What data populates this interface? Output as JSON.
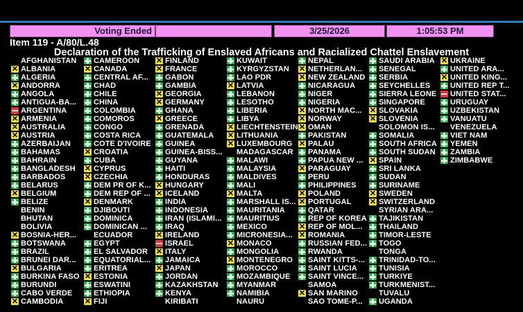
{
  "header": {
    "status": "Voting Ended",
    "blank": "",
    "date": "3/25/2026",
    "time": "1:05:53 PM"
  },
  "item": "Item 119 - A/80/L.48",
  "subject": "Declaration of the Trafficking of Enslaved Africans and Racialized Chattel Enslavement",
  "vote_colors": {
    "Y": "#2fb24c",
    "A": "#eee03a",
    "N": "#e0363a"
  },
  "vote_icons": {
    "Y": "plus-icon (yes)",
    "A": "x-icon (abstain)",
    "N": "minus-icon (no)",
    "": "no vote"
  },
  "columns": [
    [
      {
        "name": "AFGHANISTAN",
        "vote": ""
      },
      {
        "name": "ALBANIA",
        "vote": "A"
      },
      {
        "name": "ALGERIA",
        "vote": "Y"
      },
      {
        "name": "ANDORRA",
        "vote": "A"
      },
      {
        "name": "ANGOLA",
        "vote": "Y"
      },
      {
        "name": "ANTIGUA-BA...",
        "vote": "Y"
      },
      {
        "name": "ARGENTINA",
        "vote": "N"
      },
      {
        "name": "ARMENIA",
        "vote": "A"
      },
      {
        "name": "AUSTRALIA",
        "vote": "A"
      },
      {
        "name": "AUSTRIA",
        "vote": "A"
      },
      {
        "name": "AZERBAIJAN",
        "vote": "Y"
      },
      {
        "name": "BAHAMAS",
        "vote": "Y"
      },
      {
        "name": "BAHRAIN",
        "vote": "Y"
      },
      {
        "name": "BANGLADESH",
        "vote": "Y"
      },
      {
        "name": "BARBADOS",
        "vote": "Y"
      },
      {
        "name": "BELARUS",
        "vote": "Y"
      },
      {
        "name": "BELGIUM",
        "vote": "A"
      },
      {
        "name": "BELIZE",
        "vote": "Y"
      },
      {
        "name": "BENIN",
        "vote": ""
      },
      {
        "name": "BHUTAN",
        "vote": ""
      },
      {
        "name": "BOLIVIA",
        "vote": ""
      },
      {
        "name": "BOSNIA-HER...",
        "vote": "A"
      },
      {
        "name": "BOTSWANA",
        "vote": "Y"
      },
      {
        "name": "BRAZIL",
        "vote": "Y"
      },
      {
        "name": "BRUNEI DAR...",
        "vote": "Y"
      },
      {
        "name": "BULGARIA",
        "vote": "A"
      },
      {
        "name": "BURKINA FASO",
        "vote": "Y"
      },
      {
        "name": "BURUNDI",
        "vote": "Y"
      },
      {
        "name": "CABO VERDE",
        "vote": "Y"
      },
      {
        "name": "CAMBODIA",
        "vote": "A"
      }
    ],
    [
      {
        "name": "CAMEROON",
        "vote": "Y"
      },
      {
        "name": "CANADA",
        "vote": "A"
      },
      {
        "name": "CENTRAL AF...",
        "vote": "Y"
      },
      {
        "name": "CHAD",
        "vote": "Y"
      },
      {
        "name": "CHILE",
        "vote": "Y"
      },
      {
        "name": "CHINA",
        "vote": "Y"
      },
      {
        "name": "COLOMBIA",
        "vote": "Y"
      },
      {
        "name": "COMOROS",
        "vote": "Y"
      },
      {
        "name": "CONGO",
        "vote": "Y"
      },
      {
        "name": "COSTA RICA",
        "vote": "Y"
      },
      {
        "name": "COTE D'IVOIRE",
        "vote": "Y"
      },
      {
        "name": "CROATIA",
        "vote": "A"
      },
      {
        "name": "CUBA",
        "vote": "Y"
      },
      {
        "name": "CYPRUS",
        "vote": "A"
      },
      {
        "name": "CZECHIA",
        "vote": "A"
      },
      {
        "name": "DEM PR OF K...",
        "vote": "Y"
      },
      {
        "name": "DEM REP OF ...",
        "vote": "Y"
      },
      {
        "name": "DENMARK",
        "vote": "A"
      },
      {
        "name": "DJIBOUTI",
        "vote": "Y"
      },
      {
        "name": "DOMINICA",
        "vote": "Y"
      },
      {
        "name": "DOMINICAN ...",
        "vote": "Y"
      },
      {
        "name": "ECUADOR",
        "vote": ""
      },
      {
        "name": "EGYPT",
        "vote": "Y"
      },
      {
        "name": "EL SALVADOR",
        "vote": "Y"
      },
      {
        "name": "EQUATORIAL...",
        "vote": "Y"
      },
      {
        "name": "ERITREA",
        "vote": "Y"
      },
      {
        "name": "ESTONIA",
        "vote": "A"
      },
      {
        "name": "ESWATINI",
        "vote": "Y"
      },
      {
        "name": "ETHIOPIA",
        "vote": "Y"
      },
      {
        "name": "FIJI",
        "vote": "A"
      }
    ],
    [
      {
        "name": "FINLAND",
        "vote": "A"
      },
      {
        "name": "FRANCE",
        "vote": "A"
      },
      {
        "name": "GABON",
        "vote": "Y"
      },
      {
        "name": "GAMBIA",
        "vote": "Y"
      },
      {
        "name": "GEORGIA",
        "vote": "A"
      },
      {
        "name": "GERMANY",
        "vote": "A"
      },
      {
        "name": "GHANA",
        "vote": "Y"
      },
      {
        "name": "GREECE",
        "vote": "A"
      },
      {
        "name": "GRENADA",
        "vote": "Y"
      },
      {
        "name": "GUATEMALA",
        "vote": "Y"
      },
      {
        "name": "GUINEA",
        "vote": "Y"
      },
      {
        "name": "GUINEA-BISS...",
        "vote": "Y"
      },
      {
        "name": "GUYANA",
        "vote": "Y"
      },
      {
        "name": "HAITI",
        "vote": "Y"
      },
      {
        "name": "HONDURAS",
        "vote": "Y"
      },
      {
        "name": "HUNGARY",
        "vote": "A"
      },
      {
        "name": "ICELAND",
        "vote": "A"
      },
      {
        "name": "INDIA",
        "vote": "Y"
      },
      {
        "name": "INDONESIA",
        "vote": "Y"
      },
      {
        "name": "IRAN (ISLAMI...",
        "vote": "Y"
      },
      {
        "name": "IRAQ",
        "vote": "Y"
      },
      {
        "name": "IRELAND",
        "vote": "A"
      },
      {
        "name": "ISRAEL",
        "vote": "N"
      },
      {
        "name": "ITALY",
        "vote": "A"
      },
      {
        "name": "JAMAICA",
        "vote": "Y"
      },
      {
        "name": "JAPAN",
        "vote": "A"
      },
      {
        "name": "JORDAN",
        "vote": "Y"
      },
      {
        "name": "KAZAKHSTAN",
        "vote": "Y"
      },
      {
        "name": "KENYA",
        "vote": "Y"
      },
      {
        "name": "KIRIBATI",
        "vote": ""
      }
    ],
    [
      {
        "name": "KUWAIT",
        "vote": "Y"
      },
      {
        "name": "KYRGYZSTAN",
        "vote": "Y"
      },
      {
        "name": "LAO PDR",
        "vote": "Y"
      },
      {
        "name": "LATVIA",
        "vote": "A"
      },
      {
        "name": "LEBANON",
        "vote": "Y"
      },
      {
        "name": "LESOTHO",
        "vote": "Y"
      },
      {
        "name": "LIBERIA",
        "vote": "Y"
      },
      {
        "name": "LIBYA",
        "vote": "Y"
      },
      {
        "name": "LIECHTENSTEIN",
        "vote": "A"
      },
      {
        "name": "LITHUANIA",
        "vote": "A"
      },
      {
        "name": "LUXEMBOURG",
        "vote": "A"
      },
      {
        "name": "MADAGASCAR",
        "vote": ""
      },
      {
        "name": "MALAWI",
        "vote": "Y"
      },
      {
        "name": "MALAYSIA",
        "vote": "Y"
      },
      {
        "name": "MALDIVES",
        "vote": "Y"
      },
      {
        "name": "MALI",
        "vote": "Y"
      },
      {
        "name": "MALTA",
        "vote": "A"
      },
      {
        "name": "MARSHALL IS...",
        "vote": "Y"
      },
      {
        "name": "MAURITANIA",
        "vote": "Y"
      },
      {
        "name": "MAURITIUS",
        "vote": "Y"
      },
      {
        "name": "MEXICO",
        "vote": "Y"
      },
      {
        "name": "MICRONESIA...",
        "vote": "Y"
      },
      {
        "name": "MONACO",
        "vote": "A"
      },
      {
        "name": "MONGOLIA",
        "vote": "Y"
      },
      {
        "name": "MONTENEGRO",
        "vote": "A"
      },
      {
        "name": "MOROCCO",
        "vote": "Y"
      },
      {
        "name": "MOZAMBIQUE",
        "vote": "Y"
      },
      {
        "name": "MYANMAR",
        "vote": "Y"
      },
      {
        "name": "NAMIBIA",
        "vote": "Y"
      },
      {
        "name": "NAURU",
        "vote": ""
      }
    ],
    [
      {
        "name": "NEPAL",
        "vote": "Y"
      },
      {
        "name": "NETHERLAN...",
        "vote": "A"
      },
      {
        "name": "NEW ZEALAND",
        "vote": "A"
      },
      {
        "name": "NICARAGUA",
        "vote": "Y"
      },
      {
        "name": "NIGER",
        "vote": "Y"
      },
      {
        "name": "NIGERIA",
        "vote": "Y"
      },
      {
        "name": "NORTH MAC...",
        "vote": "A"
      },
      {
        "name": "NORWAY",
        "vote": "A"
      },
      {
        "name": "OMAN",
        "vote": "A"
      },
      {
        "name": "PAKISTAN",
        "vote": "Y"
      },
      {
        "name": "PALAU",
        "vote": "A"
      },
      {
        "name": "PANAMA",
        "vote": "Y"
      },
      {
        "name": "PAPUA NEW ...",
        "vote": "Y"
      },
      {
        "name": "PARAGUAY",
        "vote": "A"
      },
      {
        "name": "PERU",
        "vote": "Y"
      },
      {
        "name": "PHILIPPINES",
        "vote": "Y"
      },
      {
        "name": "POLAND",
        "vote": "A"
      },
      {
        "name": "PORTUGAL",
        "vote": "A"
      },
      {
        "name": "QATAR",
        "vote": "Y"
      },
      {
        "name": "REP OF KOREA",
        "vote": "Y"
      },
      {
        "name": "REP OF MOL...",
        "vote": "A"
      },
      {
        "name": "ROMANIA",
        "vote": "A"
      },
      {
        "name": "RUSSIAN FED...",
        "vote": "Y"
      },
      {
        "name": "RWANDA",
        "vote": "Y"
      },
      {
        "name": "SAINT KITTS-...",
        "vote": "Y"
      },
      {
        "name": "SAINT LUCIA",
        "vote": "Y"
      },
      {
        "name": "SAINT VINCE...",
        "vote": "Y"
      },
      {
        "name": "SAMOA",
        "vote": ""
      },
      {
        "name": "SAN MARINO",
        "vote": "A"
      },
      {
        "name": "SAO TOME-P...",
        "vote": ""
      }
    ],
    [
      {
        "name": "SAUDI ARABIA",
        "vote": "Y"
      },
      {
        "name": "SENEGAL",
        "vote": "Y"
      },
      {
        "name": "SERBIA",
        "vote": "Y"
      },
      {
        "name": "SEYCHELLES",
        "vote": "Y"
      },
      {
        "name": "SIERRA LEONE",
        "vote": "Y"
      },
      {
        "name": "SINGAPORE",
        "vote": "Y"
      },
      {
        "name": "SLOVAKIA",
        "vote": "A"
      },
      {
        "name": "SLOVENIA",
        "vote": "A"
      },
      {
        "name": "SOLOMON IS...",
        "vote": ""
      },
      {
        "name": "SOMALIA",
        "vote": "Y"
      },
      {
        "name": "SOUTH AFRICA",
        "vote": "Y"
      },
      {
        "name": "SOUTH SUDAN",
        "vote": "Y"
      },
      {
        "name": "SPAIN",
        "vote": "A"
      },
      {
        "name": "SRI LANKA",
        "vote": "Y"
      },
      {
        "name": "SUDAN",
        "vote": "Y"
      },
      {
        "name": "SURINAME",
        "vote": "Y"
      },
      {
        "name": "SWEDEN",
        "vote": "A"
      },
      {
        "name": "SWITZERLAND",
        "vote": "A"
      },
      {
        "name": "SYRIAN ARA...",
        "vote": ""
      },
      {
        "name": "TAJIKISTAN",
        "vote": "Y"
      },
      {
        "name": "THAILAND",
        "vote": "Y"
      },
      {
        "name": "TIMOR-LESTE",
        "vote": "Y"
      },
      {
        "name": "TOGO",
        "vote": "Y"
      },
      {
        "name": "TONGA",
        "vote": ""
      },
      {
        "name": "TRINIDAD-TO...",
        "vote": "Y"
      },
      {
        "name": "TUNISIA",
        "vote": "Y"
      },
      {
        "name": "TURKIYE",
        "vote": "Y"
      },
      {
        "name": "TURKMENIST...",
        "vote": "Y"
      },
      {
        "name": "TUVALU",
        "vote": ""
      },
      {
        "name": "UGANDA",
        "vote": "Y"
      }
    ],
    [
      {
        "name": "UKRAINE",
        "vote": "A"
      },
      {
        "name": "UNITED ARA...",
        "vote": "Y"
      },
      {
        "name": "UNITED KING...",
        "vote": "A"
      },
      {
        "name": "UNITED REP T...",
        "vote": "Y"
      },
      {
        "name": "UNITED STAT...",
        "vote": "N"
      },
      {
        "name": "URUGUAY",
        "vote": "Y"
      },
      {
        "name": "UZBEKISTAN",
        "vote": "Y"
      },
      {
        "name": "VANUATU",
        "vote": "Y"
      },
      {
        "name": "VENEZUELA",
        "vote": ""
      },
      {
        "name": "VIET NAM",
        "vote": "Y"
      },
      {
        "name": "YEMEN",
        "vote": "Y"
      },
      {
        "name": "ZAMBIA",
        "vote": "Y"
      },
      {
        "name": "ZIMBABWE",
        "vote": "Y"
      }
    ]
  ]
}
